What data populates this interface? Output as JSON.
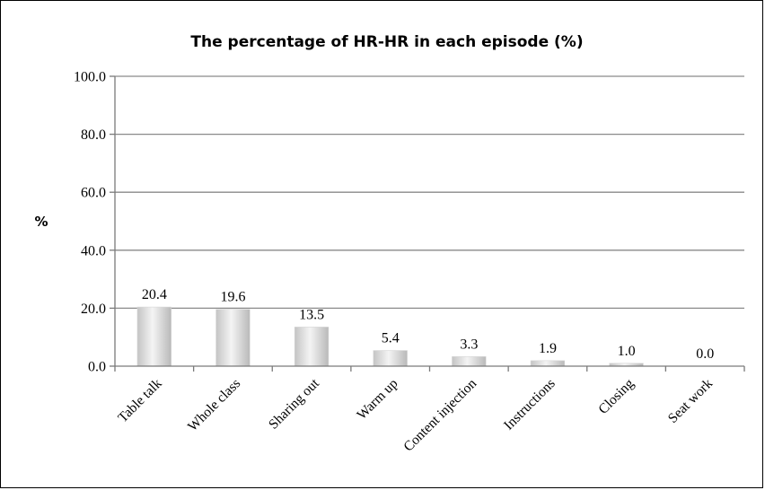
{
  "chart_data": {
    "type": "bar",
    "title": "The percentage of HR-HR in each episode (%)",
    "ylabel": "%",
    "xlabel": "",
    "categories": [
      "Table talk",
      "Whole class",
      "Sharing out",
      "Warm up",
      "Content injection",
      "Instructions",
      "Closing",
      "Seat work"
    ],
    "values": [
      20.4,
      19.6,
      13.5,
      5.4,
      3.3,
      1.9,
      1.0,
      0.0
    ],
    "value_labels": [
      "20.4",
      "19.6",
      "13.5",
      "5.4",
      "3.3",
      "1.9",
      "1.0",
      "0.0"
    ],
    "yticks": [
      0,
      20,
      40,
      60,
      80,
      100
    ],
    "ytick_labels": [
      "0.0",
      "20.0",
      "40.0",
      "60.0",
      "80.0",
      "100.0"
    ],
    "ylim": [
      0,
      100
    ],
    "grid": true,
    "legend": "none",
    "bar_color": "#c8c8c8",
    "bar_highlight": "#f2f2f2"
  }
}
